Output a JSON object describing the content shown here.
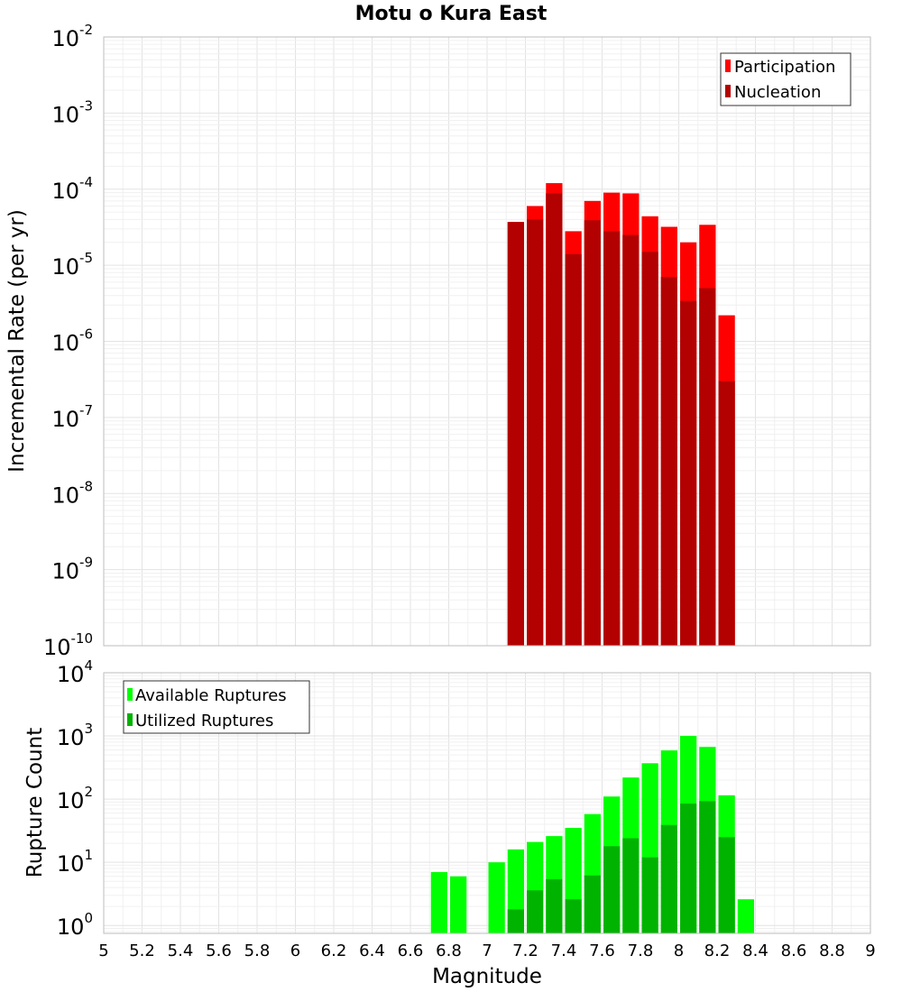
{
  "chart_data": [
    {
      "type": "bar",
      "title": "Motu o Kura East",
      "ylabel": "Incremental Rate (per yr)",
      "yscale": "log",
      "ylim": [
        1e-10,
        0.01
      ],
      "xlim": [
        5,
        9
      ],
      "ytick_labels": [
        {
          "base": "10",
          "exp": "-2"
        },
        {
          "base": "10",
          "exp": "-3"
        },
        {
          "base": "10",
          "exp": "-4"
        },
        {
          "base": "10",
          "exp": "-5"
        },
        {
          "base": "10",
          "exp": "-6"
        },
        {
          "base": "10",
          "exp": "-7"
        },
        {
          "base": "10",
          "exp": "-8"
        },
        {
          "base": "10",
          "exp": "-9"
        },
        {
          "base": "10",
          "exp": "-10"
        }
      ],
      "legend_position": "top-right",
      "x": [
        7.15,
        7.25,
        7.35,
        7.45,
        7.55,
        7.65,
        7.75,
        7.85,
        7.95,
        8.05,
        8.15,
        8.25
      ],
      "series": [
        {
          "name": "Participation",
          "color": "#ff0000",
          "values": [
            3.7e-05,
            6e-05,
            0.00012,
            2.8e-05,
            7e-05,
            9e-05,
            8.8e-05,
            4.4e-05,
            3.2e-05,
            2e-05,
            3.4e-05,
            2.2e-06
          ]
        },
        {
          "name": "Nucleation",
          "color": "#b30000",
          "values": [
            3.7e-05,
            4e-05,
            8.8e-05,
            1.4e-05,
            3.9e-05,
            2.8e-05,
            2.5e-05,
            1.5e-05,
            7e-06,
            3.4e-06,
            5e-06,
            3e-07
          ]
        }
      ]
    },
    {
      "type": "bar",
      "xlabel": "Magnitude",
      "ylabel": "Rupture Count",
      "yscale": "log",
      "ylim": [
        0.75,
        10000
      ],
      "xlim": [
        5,
        9
      ],
      "ytick_labels": [
        {
          "base": "10",
          "exp": "4"
        },
        {
          "base": "10",
          "exp": "3"
        },
        {
          "base": "10",
          "exp": "2"
        },
        {
          "base": "10",
          "exp": "1"
        },
        {
          "base": "10",
          "exp": "0"
        }
      ],
      "xticks": [
        "5",
        "5.2",
        "5.4",
        "5.6",
        "5.8",
        "6",
        "6.2",
        "6.4",
        "6.6",
        "6.8",
        "7",
        "7.2",
        "7.4",
        "7.6",
        "7.8",
        "8",
        "8.2",
        "8.4",
        "8.6",
        "8.8",
        "9"
      ],
      "legend_position": "top-left",
      "x": [
        6.75,
        6.85,
        7.05,
        7.15,
        7.25,
        7.35,
        7.45,
        7.55,
        7.65,
        7.75,
        7.85,
        7.95,
        8.05,
        8.15,
        8.25,
        8.35
      ],
      "series": [
        {
          "name": "Available Ruptures",
          "color": "#00ff00",
          "values": [
            7,
            6,
            10,
            16,
            21,
            26,
            35,
            58,
            110,
            220,
            370,
            590,
            1000,
            670,
            115,
            2.6
          ]
        },
        {
          "name": "Utilized Ruptures",
          "color": "#00b300",
          "values": [
            null,
            null,
            null,
            1.8,
            3.6,
            5.4,
            2.6,
            6.2,
            18,
            24,
            12,
            39,
            85,
            93,
            25,
            null
          ]
        }
      ]
    }
  ]
}
